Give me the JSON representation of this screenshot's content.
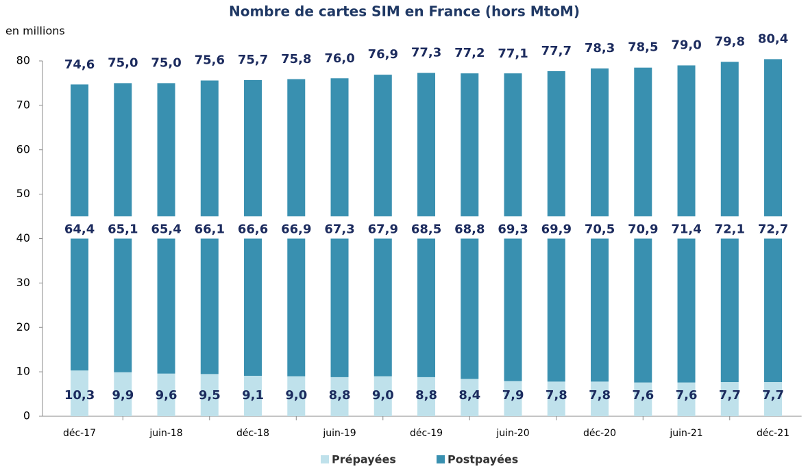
{
  "chart_data": {
    "type": "stacked_bar",
    "title": "Nombre de cartes SIM en France (hors MtoM)",
    "y_label": "en millions",
    "categories": [
      "déc-17",
      null,
      "juin-18",
      null,
      "déc-18",
      null,
      "juin-19",
      null,
      "déc-19",
      null,
      "juin-20",
      null,
      "déc-20",
      null,
      "juin-21",
      null,
      "déc-21"
    ],
    "series": [
      {
        "name": "Prépayées",
        "color": "#bfe1eb",
        "values": [
          10.3,
          9.9,
          9.6,
          9.5,
          9.1,
          9.0,
          8.8,
          9.0,
          8.8,
          8.4,
          7.9,
          7.8,
          7.8,
          7.6,
          7.6,
          7.7,
          7.7
        ],
        "value_labels": [
          "10,3",
          "9,9",
          "9,6",
          "9,5",
          "9,1",
          "9,0",
          "8,8",
          "9,0",
          "8,8",
          "8,4",
          "7,9",
          "7,8",
          "7,8",
          "7,6",
          "7,6",
          "7,7",
          "7,7"
        ]
      },
      {
        "name": "Postpayées",
        "color": "#3990b0",
        "values": [
          64.4,
          65.1,
          65.4,
          66.1,
          66.6,
          66.9,
          67.3,
          67.9,
          68.5,
          68.8,
          69.3,
          69.9,
          70.5,
          70.9,
          71.4,
          72.1,
          72.7
        ],
        "value_labels": [
          "64,4",
          "65,1",
          "65,4",
          "66,1",
          "66,6",
          "66,9",
          "67,3",
          "67,9",
          "68,5",
          "68,8",
          "69,3",
          "69,9",
          "70,5",
          "70,9",
          "71,4",
          "72,1",
          "72,7"
        ]
      }
    ],
    "totals": {
      "values": [
        74.6,
        75.0,
        75.0,
        75.6,
        75.7,
        75.8,
        76.0,
        76.9,
        77.3,
        77.2,
        77.1,
        77.7,
        78.3,
        78.5,
        79.0,
        79.8,
        80.4
      ],
      "value_labels": [
        "74,6",
        "75,0",
        "75,0",
        "75,6",
        "75,7",
        "75,8",
        "76,0",
        "76,9",
        "77,3",
        "77,2",
        "77,1",
        "77,7",
        "78,3",
        "78,5",
        "79,0",
        "79,8",
        "80,4"
      ]
    },
    "ylim": [
      0,
      80
    ],
    "yticks": [
      0,
      10,
      20,
      30,
      40,
      50,
      60,
      70,
      80
    ],
    "legend": "bottom"
  }
}
